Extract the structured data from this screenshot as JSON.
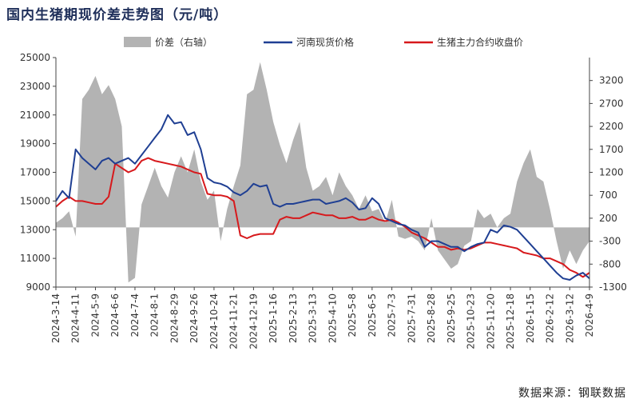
{
  "title": "国内生猪期现价差走势图（元/吨）",
  "source": "数据来源：钢联数据",
  "colors": {
    "spread": "#b3b3b3",
    "henan": "#1f3f93",
    "futures": "#d7191c"
  },
  "chart_data": {
    "type": "line",
    "title": "国内生猪期现价差走势图（元/吨）",
    "x_tick_labels": [
      "2024-3-14",
      "2024-4-11",
      "2024-5-9",
      "2024-6-6",
      "2024-7-4",
      "2024-8-1",
      "2024-8-29",
      "2024-9-26",
      "2024-10-24",
      "2024-11-21",
      "2024-12-19",
      "2025-1-16",
      "2025-2-13",
      "2025-3-13",
      "2025-4-10",
      "2025-5-8",
      "2025-6-5",
      "2025-7-3",
      "2025-7-31",
      "2025-8-28",
      "2025-9-25",
      "2025-10-23",
      "2025-11-20",
      "2025-12-18",
      "2026-1-15",
      "2026-2-12",
      "2026-3-12",
      "2026-4-9"
    ],
    "y_left": {
      "min": 9000,
      "max": 25000,
      "ticks": [
        9000,
        11000,
        13000,
        15000,
        17000,
        19000,
        21000,
        23000,
        25000
      ]
    },
    "y_right": {
      "min": -1300,
      "max": 3700,
      "ticks": [
        -1300,
        -800,
        -300,
        200,
        700,
        1200,
        1700,
        2200,
        2700,
        3200
      ]
    },
    "legend_position": "top",
    "series": [
      {
        "name": "价差（右轴）",
        "type": "area",
        "axis": "right",
        "values": [
          100,
          200,
          350,
          -200,
          2800,
          3000,
          3300,
          2900,
          3100,
          2800,
          2200,
          -1200,
          -1100,
          500,
          900,
          1300,
          900,
          650,
          1200,
          1550,
          1200,
          1700,
          1000,
          600,
          800,
          -300,
          400,
          900,
          1350,
          2900,
          3000,
          3600,
          3000,
          2300,
          1800,
          1400,
          1900,
          2300,
          1300,
          800,
          900,
          1100,
          700,
          1200,
          900,
          700,
          400,
          700,
          350,
          400,
          100,
          600,
          -200,
          -250,
          -200,
          -300,
          -500,
          200,
          -500,
          -700,
          -900,
          -800,
          -400,
          -300,
          400,
          200,
          300,
          0,
          200,
          300,
          1000,
          1400,
          1700,
          1100,
          1000,
          400,
          -300,
          -900,
          -500,
          -800,
          -500,
          -300
        ]
      },
      {
        "name": "河南现货价格",
        "type": "line",
        "axis": "left",
        "values": [
          15000,
          15700,
          15200,
          18600,
          18000,
          17600,
          17200,
          17800,
          18000,
          17600,
          17800,
          18000,
          17600,
          18200,
          18800,
          19400,
          20000,
          21000,
          20400,
          20500,
          19600,
          19800,
          18600,
          16600,
          16300,
          16200,
          16000,
          15600,
          15400,
          15700,
          16200,
          16000,
          16100,
          14800,
          14600,
          14800,
          14800,
          14900,
          15000,
          15100,
          15100,
          14800,
          14900,
          15000,
          15200,
          14900,
          14400,
          14500,
          15200,
          14800,
          13800,
          13600,
          13400,
          13300,
          13000,
          12800,
          11800,
          12200,
          12200,
          12000,
          11800,
          11800,
          11500,
          11800,
          12000,
          12100,
          13000,
          12800,
          13300,
          13200,
          13000,
          12500,
          12000,
          11500,
          11000,
          10500,
          10000,
          9600,
          9500,
          9800,
          10000,
          9600
        ]
      },
      {
        "name": "生猪主力合约收盘价",
        "type": "line",
        "axis": "left",
        "values": [
          14600,
          15000,
          15300,
          15000,
          15000,
          14900,
          14800,
          14800,
          15300,
          17600,
          17300,
          17000,
          17200,
          17800,
          18000,
          17800,
          17700,
          17600,
          17500,
          17400,
          17200,
          17000,
          16900,
          15500,
          15400,
          15400,
          15300,
          15000,
          12600,
          12400,
          12600,
          12700,
          12700,
          12700,
          13700,
          13900,
          13800,
          13800,
          14000,
          14200,
          14100,
          14000,
          14000,
          13800,
          13800,
          13900,
          13700,
          13700,
          13900,
          13700,
          13600,
          13700,
          13500,
          13200,
          12800,
          12600,
          12400,
          12100,
          11800,
          11800,
          11600,
          11700,
          11600,
          11700,
          11900,
          12100,
          12100,
          12000,
          11900,
          11800,
          11700,
          11400,
          11300,
          11200,
          11000,
          11000,
          10800,
          10600,
          10200,
          10000,
          9700,
          10000
        ]
      }
    ]
  }
}
